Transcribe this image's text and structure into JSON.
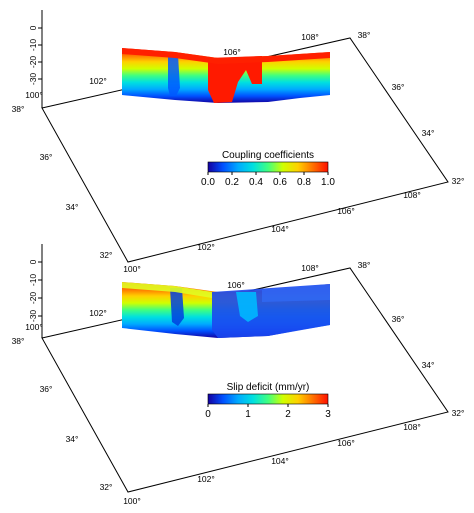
{
  "chart_data": [
    {
      "type": "heatmap",
      "title": "",
      "colorbar": {
        "title": "Coupling coefficients",
        "ticks": [
          "0.0",
          "0.2",
          "0.4",
          "0.6",
          "0.8",
          "1.0"
        ],
        "range": [
          0,
          1
        ],
        "colormap": [
          "#1400a0",
          "#0050ff",
          "#00aaff",
          "#00e0e0",
          "#40ff80",
          "#d0ff00",
          "#ffd000",
          "#ff7000",
          "#ff1000"
        ]
      },
      "depth_ticks": [
        "0",
        "-10",
        "-20",
        "-30"
      ],
      "lon_ticks_front": [
        "100°",
        "102°",
        "104°",
        "106°",
        "108°"
      ],
      "lat_ticks_left": [
        "38°",
        "36°",
        "34°",
        "32°"
      ],
      "lat_ticks_right": [
        "38°",
        "36°",
        "34°",
        "32°"
      ],
      "lon_ticks_back": [
        "102°",
        "106°",
        "108°"
      ],
      "lon_tick_left_corner": "100°",
      "fault_profile": {
        "along_strike": [
          0,
          0.05,
          0.1,
          0.15,
          0.2,
          0.25,
          0.3,
          0.35,
          0.4,
          0.45,
          0.5,
          0.55,
          0.6,
          0.65,
          0.7,
          0.75,
          0.8,
          0.85,
          0.9,
          0.95,
          1.0
        ],
        "locking_depth": [
          15,
          15,
          15,
          15,
          9,
          14,
          16,
          16,
          30,
          30,
          30,
          22,
          30,
          30,
          13,
          13,
          12,
          12,
          11,
          11,
          11
        ]
      }
    },
    {
      "type": "heatmap",
      "title": "",
      "colorbar": {
        "title": "Slip deficit (mm/yr)",
        "ticks": [
          "0",
          "1",
          "2",
          "3"
        ],
        "range": [
          0,
          3
        ],
        "colormap": [
          "#1400a0",
          "#0050ff",
          "#00aaff",
          "#00e0e0",
          "#40ff80",
          "#d0ff00",
          "#ffd000",
          "#ff7000",
          "#ff1000"
        ]
      },
      "depth_ticks": [
        "0",
        "-10",
        "-20",
        "-30"
      ],
      "lon_ticks_front": [
        "100°",
        "102°",
        "104°",
        "106°",
        "108°"
      ],
      "lat_ticks_left": [
        "38°",
        "36°",
        "34°",
        "32°"
      ],
      "lat_ticks_right": [
        "38°",
        "36°",
        "34°",
        "32°"
      ],
      "lon_ticks_back": [
        "102°",
        "106°",
        "108°"
      ],
      "lon_tick_left_corner": "100°",
      "fault_profile": {
        "along_strike": [
          0,
          0.05,
          0.1,
          0.15,
          0.2,
          0.25,
          0.3,
          0.35,
          0.4,
          0.45,
          0.5,
          0.55,
          0.6,
          0.65,
          0.7,
          0.75,
          0.8,
          0.85,
          0.9,
          0.95,
          1.0
        ],
        "slip_rate_max": [
          1.5,
          1.5,
          1.5,
          1.3,
          0.5,
          1.2,
          1.4,
          1.0,
          1.0,
          1.0,
          1.0,
          1.0,
          0.6,
          0.6,
          0.6,
          0.6,
          0.6,
          0.6,
          0.6,
          0.6,
          0.6
        ]
      }
    }
  ]
}
